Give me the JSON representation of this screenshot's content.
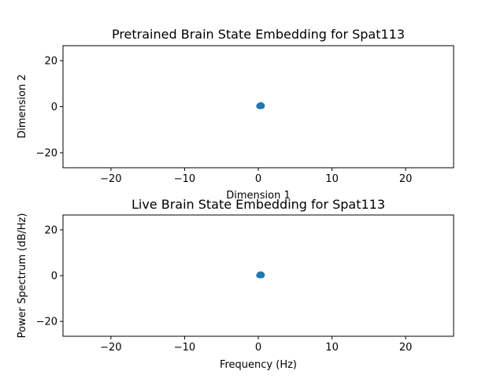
{
  "chart_data": [
    {
      "type": "scatter",
      "title": "Pretrained Brain State Embedding for Spat113",
      "xlabel": "Dimension 1",
      "ylabel": "Dimension 2",
      "xlim": [
        -26.5,
        26.5
      ],
      "ylim": [
        -26.5,
        26.5
      ],
      "xticks": [
        -20,
        -10,
        0,
        10,
        20
      ],
      "yticks": [
        -20,
        0,
        20
      ],
      "xtick_labels": [
        "−20",
        "−10",
        "0",
        "10",
        "20"
      ],
      "ytick_labels": [
        "−20",
        "0",
        "20"
      ],
      "grid": false,
      "color": "#1f77b4",
      "x": [
        0.05,
        0.15,
        0.25,
        0.35,
        0.45,
        0.55,
        0.2,
        0.3,
        0.4,
        0.5,
        0.1,
        0.3,
        0.45,
        0.25,
        0.35,
        0.15,
        0.5,
        0.4
      ],
      "y": [
        0.2,
        0.5,
        0.8,
        0.3,
        0.6,
        0.4,
        0.0,
        0.7,
        0.9,
        0.1,
        0.4,
        0.3,
        0.5,
        0.6,
        0.2,
        0.7,
        0.6,
        0.35
      ]
    },
    {
      "type": "scatter",
      "title": "Live Brain State Embedding for Spat113",
      "xlabel": "Frequency (Hz)",
      "ylabel": "Power Spectrum (dB/Hz)",
      "xlim": [
        -26.5,
        26.5
      ],
      "ylim": [
        -26.5,
        26.5
      ],
      "xticks": [
        -20,
        -10,
        0,
        10,
        20
      ],
      "yticks": [
        -20,
        0,
        20
      ],
      "xtick_labels": [
        "−20",
        "−10",
        "0",
        "10",
        "20"
      ],
      "ytick_labels": [
        "−20",
        "0",
        "20"
      ],
      "grid": false,
      "color": "#1f77b4",
      "x": [
        0.05,
        0.15,
        0.25,
        0.35,
        0.45,
        0.55,
        0.2,
        0.3,
        0.4,
        0.5,
        0.1,
        0.3,
        0.45,
        0.25,
        0.35,
        0.15,
        0.5,
        0.4
      ],
      "y": [
        0.1,
        0.4,
        0.7,
        0.2,
        0.5,
        0.3,
        -0.1,
        0.6,
        0.8,
        0.0,
        0.3,
        0.2,
        0.4,
        0.5,
        0.1,
        0.6,
        0.5,
        0.25
      ]
    }
  ]
}
